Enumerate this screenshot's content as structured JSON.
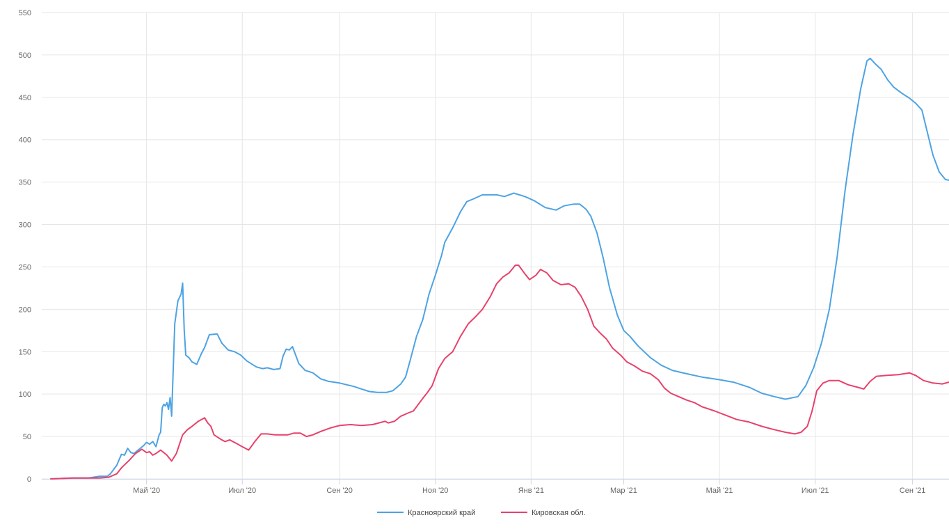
{
  "chart_data": {
    "type": "line",
    "title": "",
    "xlabel": "",
    "ylabel": "",
    "ylim": [
      0,
      550
    ],
    "yticks": [
      0,
      50,
      100,
      150,
      200,
      250,
      300,
      350,
      400,
      450,
      500,
      550
    ],
    "xlim": [
      "2020-03-01",
      "2021-09-30"
    ],
    "xticks": [
      {
        "date": "2020-05-01",
        "label": "Май '20"
      },
      {
        "date": "2020-07-01",
        "label": "Июл '20"
      },
      {
        "date": "2020-09-01",
        "label": "Сен '20"
      },
      {
        "date": "2020-11-01",
        "label": "Ноя '20"
      },
      {
        "date": "2021-01-01",
        "label": "Янв '21"
      },
      {
        "date": "2021-03-01",
        "label": "Мар '21"
      },
      {
        "date": "2021-05-01",
        "label": "Май '21"
      },
      {
        "date": "2021-07-01",
        "label": "Июл '21"
      },
      {
        "date": "2021-09-01",
        "label": "Сен '21"
      }
    ],
    "grid": true,
    "legend_position": "bottom-center",
    "series": [
      {
        "name": "Красноярский край",
        "color": "#4da3e3",
        "points": [
          [
            "2020-03-01",
            0
          ],
          [
            "2020-03-15",
            1
          ],
          [
            "2020-03-25",
            1
          ],
          [
            "2020-04-01",
            3
          ],
          [
            "2020-04-06",
            3
          ],
          [
            "2020-04-08",
            6
          ],
          [
            "2020-04-12",
            16
          ],
          [
            "2020-04-15",
            29
          ],
          [
            "2020-04-17",
            28
          ],
          [
            "2020-04-19",
            36
          ],
          [
            "2020-04-21",
            31
          ],
          [
            "2020-04-23",
            30
          ],
          [
            "2020-04-25",
            33
          ],
          [
            "2020-04-27",
            36
          ],
          [
            "2020-04-29",
            39
          ],
          [
            "2020-05-01",
            43
          ],
          [
            "2020-05-03",
            41
          ],
          [
            "2020-05-05",
            44
          ],
          [
            "2020-05-07",
            38
          ],
          [
            "2020-05-09",
            52
          ],
          [
            "2020-05-10",
            55
          ],
          [
            "2020-05-11",
            84
          ],
          [
            "2020-05-12",
            88
          ],
          [
            "2020-05-13",
            86
          ],
          [
            "2020-05-14",
            90
          ],
          [
            "2020-05-15",
            82
          ],
          [
            "2020-05-16",
            96
          ],
          [
            "2020-05-17",
            74
          ],
          [
            "2020-05-19",
            183
          ],
          [
            "2020-05-21",
            210
          ],
          [
            "2020-05-23",
            218
          ],
          [
            "2020-05-24",
            231
          ],
          [
            "2020-05-25",
            175
          ],
          [
            "2020-05-26",
            146
          ],
          [
            "2020-05-28",
            143
          ],
          [
            "2020-05-30",
            138
          ],
          [
            "2020-06-02",
            135
          ],
          [
            "2020-06-05",
            148
          ],
          [
            "2020-06-07",
            155
          ],
          [
            "2020-06-10",
            170
          ],
          [
            "2020-06-15",
            171
          ],
          [
            "2020-06-18",
            160
          ],
          [
            "2020-06-22",
            152
          ],
          [
            "2020-06-26",
            150
          ],
          [
            "2020-06-30",
            146
          ],
          [
            "2020-07-04",
            139
          ],
          [
            "2020-07-10",
            132
          ],
          [
            "2020-07-14",
            130
          ],
          [
            "2020-07-17",
            131
          ],
          [
            "2020-07-21",
            129
          ],
          [
            "2020-07-25",
            130
          ],
          [
            "2020-07-27",
            145
          ],
          [
            "2020-07-29",
            153
          ],
          [
            "2020-07-31",
            152
          ],
          [
            "2020-08-02",
            156
          ],
          [
            "2020-08-06",
            136
          ],
          [
            "2020-08-10",
            128
          ],
          [
            "2020-08-15",
            125
          ],
          [
            "2020-08-20",
            118
          ],
          [
            "2020-08-25",
            115
          ],
          [
            "2020-09-01",
            113
          ],
          [
            "2020-09-10",
            109
          ],
          [
            "2020-09-15",
            106
          ],
          [
            "2020-09-20",
            103
          ],
          [
            "2020-09-25",
            102
          ],
          [
            "2020-10-01",
            102
          ],
          [
            "2020-10-05",
            104
          ],
          [
            "2020-10-10",
            112
          ],
          [
            "2020-10-13",
            120
          ],
          [
            "2020-10-16",
            140
          ],
          [
            "2020-10-20",
            168
          ],
          [
            "2020-10-24",
            188
          ],
          [
            "2020-10-28",
            218
          ],
          [
            "2020-11-01",
            240
          ],
          [
            "2020-11-05",
            264
          ],
          [
            "2020-11-07",
            279
          ],
          [
            "2020-11-12",
            296
          ],
          [
            "2020-11-17",
            315
          ],
          [
            "2020-11-21",
            327
          ],
          [
            "2020-11-25",
            330
          ],
          [
            "2020-12-01",
            335
          ],
          [
            "2020-12-10",
            335
          ],
          [
            "2020-12-15",
            333
          ],
          [
            "2020-12-21",
            337
          ],
          [
            "2020-12-28",
            333
          ],
          [
            "2021-01-03",
            328
          ],
          [
            "2021-01-10",
            320
          ],
          [
            "2021-01-17",
            317
          ],
          [
            "2021-01-22",
            322
          ],
          [
            "2021-01-28",
            324
          ],
          [
            "2021-02-01",
            324
          ],
          [
            "2021-02-05",
            318
          ],
          [
            "2021-02-08",
            310
          ],
          [
            "2021-02-12",
            290
          ],
          [
            "2021-02-16",
            260
          ],
          [
            "2021-02-20",
            225
          ],
          [
            "2021-02-25",
            193
          ],
          [
            "2021-03-01",
            175
          ],
          [
            "2021-03-05",
            168
          ],
          [
            "2021-03-10",
            157
          ],
          [
            "2021-03-18",
            143
          ],
          [
            "2021-03-25",
            134
          ],
          [
            "2021-04-01",
            128
          ],
          [
            "2021-04-10",
            124
          ],
          [
            "2021-04-20",
            120
          ],
          [
            "2021-05-01",
            117
          ],
          [
            "2021-05-10",
            114
          ],
          [
            "2021-05-20",
            108
          ],
          [
            "2021-05-28",
            101
          ],
          [
            "2021-06-05",
            97
          ],
          [
            "2021-06-12",
            94
          ],
          [
            "2021-06-20",
            97
          ],
          [
            "2021-06-25",
            110
          ],
          [
            "2021-06-30",
            131
          ],
          [
            "2021-07-05",
            160
          ],
          [
            "2021-07-10",
            200
          ],
          [
            "2021-07-15",
            262
          ],
          [
            "2021-07-20",
            340
          ],
          [
            "2021-07-25",
            405
          ],
          [
            "2021-07-30",
            460
          ],
          [
            "2021-08-03",
            493
          ],
          [
            "2021-08-05",
            496
          ],
          [
            "2021-08-08",
            490
          ],
          [
            "2021-08-12",
            483
          ],
          [
            "2021-08-16",
            471
          ],
          [
            "2021-08-20",
            462
          ],
          [
            "2021-08-25",
            455
          ],
          [
            "2021-08-30",
            449
          ],
          [
            "2021-09-03",
            443
          ],
          [
            "2021-09-07",
            435
          ],
          [
            "2021-09-10",
            412
          ],
          [
            "2021-09-14",
            382
          ],
          [
            "2021-09-18",
            362
          ],
          [
            "2021-09-22",
            353
          ],
          [
            "2021-09-25",
            352
          ],
          [
            "2021-09-30",
            354
          ],
          [
            "2021-10-03",
            356
          ]
        ]
      },
      {
        "name": "Кировская обл.",
        "color": "#e8416b",
        "points": [
          [
            "2020-03-01",
            0
          ],
          [
            "2020-03-15",
            1
          ],
          [
            "2020-04-01",
            1
          ],
          [
            "2020-04-07",
            2
          ],
          [
            "2020-04-12",
            6
          ],
          [
            "2020-04-15",
            13
          ],
          [
            "2020-04-20",
            22
          ],
          [
            "2020-04-24",
            30
          ],
          [
            "2020-04-28",
            35
          ],
          [
            "2020-05-01",
            31
          ],
          [
            "2020-05-03",
            32
          ],
          [
            "2020-05-05",
            28
          ],
          [
            "2020-05-07",
            30
          ],
          [
            "2020-05-10",
            34
          ],
          [
            "2020-05-14",
            28
          ],
          [
            "2020-05-17",
            21
          ],
          [
            "2020-05-20",
            30
          ],
          [
            "2020-05-24",
            52
          ],
          [
            "2020-05-27",
            58
          ],
          [
            "2020-05-30",
            62
          ],
          [
            "2020-06-03",
            68
          ],
          [
            "2020-06-07",
            72
          ],
          [
            "2020-06-09",
            66
          ],
          [
            "2020-06-11",
            62
          ],
          [
            "2020-06-13",
            52
          ],
          [
            "2020-06-17",
            47
          ],
          [
            "2020-06-20",
            44
          ],
          [
            "2020-06-23",
            46
          ],
          [
            "2020-06-27",
            42
          ],
          [
            "2020-07-01",
            38
          ],
          [
            "2020-07-03",
            36
          ],
          [
            "2020-07-05",
            34
          ],
          [
            "2020-07-09",
            44
          ],
          [
            "2020-07-13",
            53
          ],
          [
            "2020-07-17",
            53
          ],
          [
            "2020-07-22",
            52
          ],
          [
            "2020-07-26",
            52
          ],
          [
            "2020-07-30",
            52
          ],
          [
            "2020-08-03",
            54
          ],
          [
            "2020-08-07",
            54
          ],
          [
            "2020-08-11",
            50
          ],
          [
            "2020-08-15",
            52
          ],
          [
            "2020-08-20",
            56
          ],
          [
            "2020-08-26",
            60
          ],
          [
            "2020-09-01",
            63
          ],
          [
            "2020-09-08",
            64
          ],
          [
            "2020-09-15",
            63
          ],
          [
            "2020-09-22",
            64
          ],
          [
            "2020-09-26",
            66
          ],
          [
            "2020-09-30",
            68
          ],
          [
            "2020-10-02",
            66
          ],
          [
            "2020-10-06",
            68
          ],
          [
            "2020-10-10",
            74
          ],
          [
            "2020-10-15",
            78
          ],
          [
            "2020-10-18",
            80
          ],
          [
            "2020-10-24",
            95
          ],
          [
            "2020-10-27",
            102
          ],
          [
            "2020-10-30",
            110
          ],
          [
            "2020-11-03",
            130
          ],
          [
            "2020-11-07",
            142
          ],
          [
            "2020-11-12",
            150
          ],
          [
            "2020-11-17",
            168
          ],
          [
            "2020-11-22",
            183
          ],
          [
            "2020-11-27",
            192
          ],
          [
            "2020-12-01",
            200
          ],
          [
            "2020-12-06",
            215
          ],
          [
            "2020-12-10",
            230
          ],
          [
            "2020-12-14",
            238
          ],
          [
            "2020-12-18",
            243
          ],
          [
            "2020-12-22",
            252
          ],
          [
            "2020-12-24",
            252
          ],
          [
            "2020-12-28",
            242
          ],
          [
            "2020-12-31",
            235
          ],
          [
            "2021-01-04",
            240
          ],
          [
            "2021-01-07",
            247
          ],
          [
            "2021-01-11",
            243
          ],
          [
            "2021-01-15",
            234
          ],
          [
            "2021-01-20",
            229
          ],
          [
            "2021-01-25",
            230
          ],
          [
            "2021-01-29",
            226
          ],
          [
            "2021-02-02",
            215
          ],
          [
            "2021-02-06",
            200
          ],
          [
            "2021-02-10",
            180
          ],
          [
            "2021-02-14",
            172
          ],
          [
            "2021-02-18",
            165
          ],
          [
            "2021-02-22",
            154
          ],
          [
            "2021-02-27",
            146
          ],
          [
            "2021-03-03",
            138
          ],
          [
            "2021-03-08",
            133
          ],
          [
            "2021-03-13",
            127
          ],
          [
            "2021-03-18",
            124
          ],
          [
            "2021-03-23",
            117
          ],
          [
            "2021-03-27",
            107
          ],
          [
            "2021-03-31",
            101
          ],
          [
            "2021-04-05",
            97
          ],
          [
            "2021-04-10",
            93
          ],
          [
            "2021-04-15",
            90
          ],
          [
            "2021-04-20",
            85
          ],
          [
            "2021-04-28",
            80
          ],
          [
            "2021-05-05",
            75
          ],
          [
            "2021-05-12",
            70
          ],
          [
            "2021-05-20",
            67
          ],
          [
            "2021-05-28",
            62
          ],
          [
            "2021-06-05",
            58
          ],
          [
            "2021-06-12",
            55
          ],
          [
            "2021-06-18",
            53
          ],
          [
            "2021-06-22",
            55
          ],
          [
            "2021-06-26",
            62
          ],
          [
            "2021-06-29",
            80
          ],
          [
            "2021-07-02",
            104
          ],
          [
            "2021-07-06",
            113
          ],
          [
            "2021-07-10",
            116
          ],
          [
            "2021-07-16",
            116
          ],
          [
            "2021-07-22",
            111
          ],
          [
            "2021-07-28",
            108
          ],
          [
            "2021-08-01",
            106
          ],
          [
            "2021-08-05",
            115
          ],
          [
            "2021-08-09",
            121
          ],
          [
            "2021-08-15",
            122
          ],
          [
            "2021-08-23",
            123
          ],
          [
            "2021-08-30",
            125
          ],
          [
            "2021-09-03",
            122
          ],
          [
            "2021-09-08",
            116
          ],
          [
            "2021-09-14",
            113
          ],
          [
            "2021-09-20",
            112
          ],
          [
            "2021-09-26",
            115
          ],
          [
            "2021-10-01",
            114
          ],
          [
            "2021-10-04",
            118
          ],
          [
            "2021-10-09",
            131
          ]
        ]
      }
    ]
  }
}
